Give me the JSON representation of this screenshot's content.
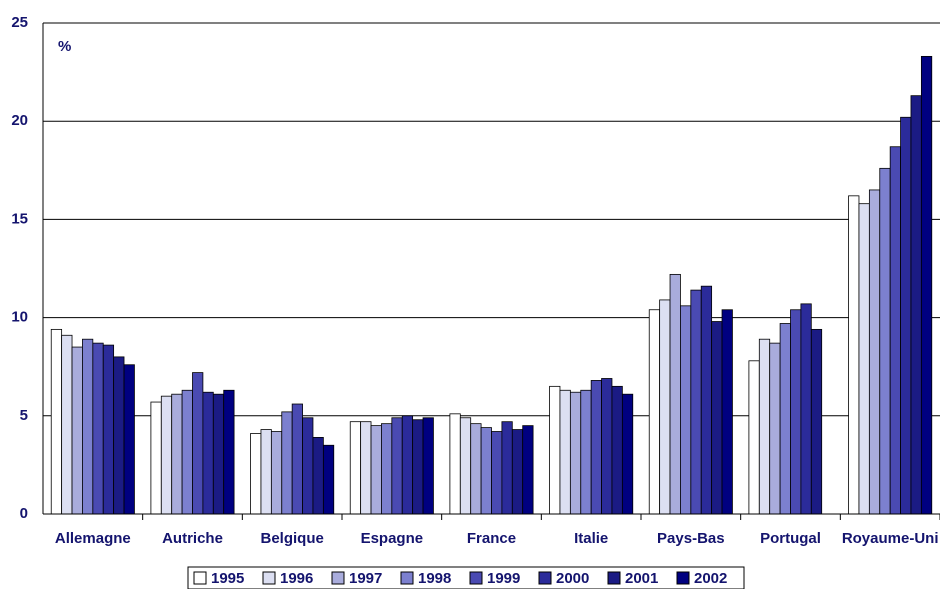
{
  "chart_data": {
    "type": "bar",
    "annotation": "%",
    "categories": [
      "Allemagne",
      "Autriche",
      "Belgique",
      "Espagne",
      "France",
      "Italie",
      "Pays-Bas",
      "Portugal",
      "Royaume-Uni"
    ],
    "series": [
      {
        "name": "1995",
        "color": "#ffffff",
        "values": [
          9.4,
          5.7,
          4.1,
          4.7,
          5.1,
          6.5,
          10.4,
          7.8,
          16.2
        ]
      },
      {
        "name": "1996",
        "color": "#dcdff2",
        "values": [
          9.1,
          6.0,
          4.3,
          4.7,
          4.9,
          6.3,
          10.9,
          8.9,
          15.8
        ]
      },
      {
        "name": "1997",
        "color": "#a9acdc",
        "values": [
          8.5,
          6.1,
          4.2,
          4.5,
          4.6,
          6.2,
          12.2,
          8.7,
          16.5
        ]
      },
      {
        "name": "1998",
        "color": "#7c80cf",
        "values": [
          8.9,
          6.3,
          5.2,
          4.6,
          4.4,
          6.3,
          10.6,
          9.7,
          17.6
        ]
      },
      {
        "name": "1999",
        "color": "#4a4ab2",
        "values": [
          8.7,
          7.2,
          5.6,
          4.9,
          4.2,
          6.8,
          11.4,
          10.4,
          18.7
        ]
      },
      {
        "name": "2000",
        "color": "#2b2b9a",
        "values": [
          8.6,
          6.2,
          4.9,
          5.0,
          4.7,
          6.9,
          11.6,
          10.7,
          20.2
        ]
      },
      {
        "name": "2001",
        "color": "#1b1b84",
        "values": [
          8.0,
          6.1,
          3.9,
          4.8,
          4.3,
          6.5,
          9.8,
          9.4,
          21.3
        ]
      },
      {
        "name": "2002",
        "color": "#000080",
        "values": [
          7.6,
          6.3,
          3.5,
          4.9,
          4.5,
          6.1,
          10.4,
          null,
          23.3
        ]
      }
    ],
    "ylim": [
      0,
      25
    ],
    "yticks": [
      0,
      5,
      10,
      15,
      20,
      25
    ],
    "grid": true
  }
}
